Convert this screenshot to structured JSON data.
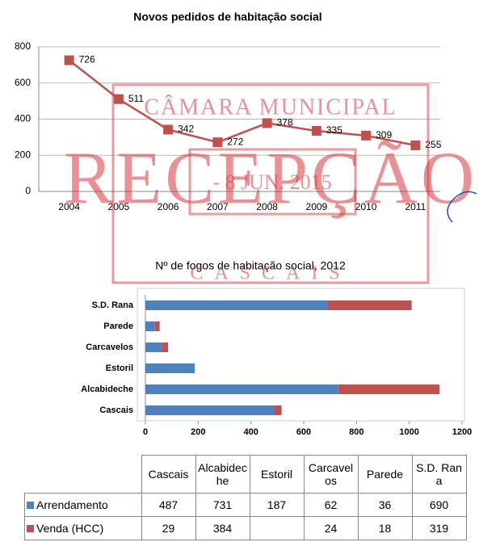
{
  "chart_data": [
    {
      "type": "line",
      "title": "Novos pedidos de habitação social",
      "categories": [
        "2004",
        "2005",
        "2006",
        "2007",
        "2008",
        "2009",
        "2010",
        "2011"
      ],
      "values": [
        726,
        511,
        342,
        272,
        378,
        335,
        309,
        255
      ],
      "color": "#c0504d",
      "ylim": [
        0,
        800
      ],
      "yticks": [
        0,
        200,
        400,
        600,
        800
      ],
      "grid": true
    },
    {
      "type": "hbar-stacked",
      "title": "Nº de fogos de habitação social, 2012",
      "categories": [
        "Cascais",
        "Alcabideche",
        "Estoril",
        "Carcavelos",
        "Parede",
        "S.D. Rana"
      ],
      "series": [
        {
          "name": "Arrendamento",
          "color": "#4f81bd",
          "values": [
            487,
            731,
            187,
            62,
            36,
            690
          ]
        },
        {
          "name": "Venda (HCC)",
          "color": "#c0504d",
          "values": [
            29,
            384,
            null,
            24,
            18,
            319
          ]
        }
      ],
      "xlim": [
        0,
        1200
      ],
      "xticks": [
        0,
        200,
        400,
        600,
        800,
        1000,
        1200
      ],
      "grid": false
    }
  ],
  "stamp": {
    "top": "CÂMARA MUNICIPAL",
    "middle": "RECEPÇÃO",
    "date": "- 8 JUN. 2015",
    "bottom": "CASCAIS"
  }
}
